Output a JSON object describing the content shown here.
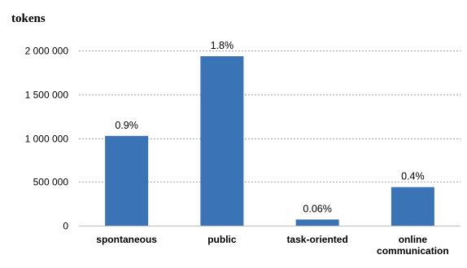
{
  "chart_data": {
    "type": "bar",
    "unit_label": "tokens",
    "categories": [
      [
        "spontaneous"
      ],
      [
        "public"
      ],
      [
        "task-oriented"
      ],
      [
        "online",
        "communication"
      ]
    ],
    "values": [
      1025000,
      1935000,
      70000,
      440000
    ],
    "data_labels": [
      "0.9%",
      "1.8%",
      "0.06%",
      "0.4%"
    ],
    "yticks": [
      0,
      500000,
      1000000,
      1500000,
      2000000
    ],
    "ytick_labels": [
      "0",
      "500 000",
      "1 000 000",
      "1 500 000",
      "2 000 000"
    ],
    "ylim": [
      0,
      2000000
    ],
    "bar_color": "#3a74b6",
    "grid": true
  }
}
